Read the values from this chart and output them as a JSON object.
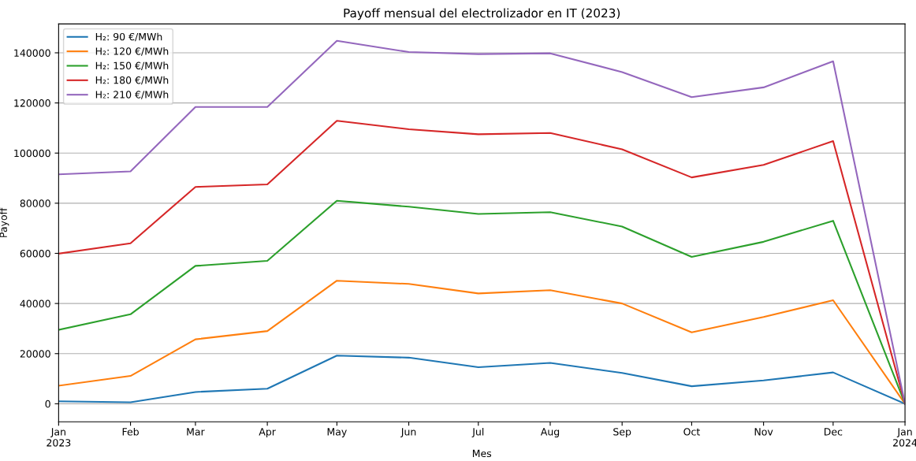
{
  "chart_data": {
    "type": "line",
    "title": "Payoff mensual del electrolizador en IT (2023)",
    "xlabel": "Mes",
    "ylabel": "Payoff",
    "x": [
      "2023-01",
      "2023-02",
      "2023-03",
      "2023-04",
      "2023-05",
      "2023-06",
      "2023-07",
      "2023-08",
      "2023-09",
      "2023-10",
      "2023-11",
      "2023-12",
      "2024-01"
    ],
    "series": [
      {
        "name": "H₂: 90 €/MWh",
        "color": "#1f77b4",
        "values": [
          1000,
          600,
          4700,
          6000,
          19200,
          18400,
          14600,
          16300,
          12300,
          7000,
          9300,
          12500,
          0
        ]
      },
      {
        "name": "H₂: 120 €/MWh",
        "color": "#ff7f0e",
        "values": [
          7200,
          11100,
          25700,
          29000,
          49100,
          47800,
          44000,
          45300,
          40000,
          28500,
          34600,
          41300,
          0
        ]
      },
      {
        "name": "H₂: 150 €/MWh",
        "color": "#2ca02c",
        "values": [
          29500,
          35700,
          55000,
          57000,
          81000,
          78600,
          75700,
          76400,
          70700,
          58600,
          64600,
          73000,
          0
        ]
      },
      {
        "name": "H₂: 180 €/MWh",
        "color": "#d62728",
        "values": [
          59900,
          64000,
          86500,
          87500,
          112900,
          109500,
          107500,
          108000,
          101500,
          90300,
          95300,
          104800,
          0
        ]
      },
      {
        "name": "H₂: 210 €/MWh",
        "color": "#9467bd",
        "values": [
          91500,
          92700,
          118400,
          118400,
          144800,
          140300,
          139500,
          139800,
          132300,
          122300,
          126200,
          136600,
          0
        ]
      }
    ],
    "xlim": [
      "2023-01",
      "2024-01"
    ],
    "xticks": [
      {
        "value": "2023-01",
        "label": "Jan\n2023"
      },
      {
        "value": "2023-02",
        "label": "Feb"
      },
      {
        "value": "2023-03",
        "label": "Mar"
      },
      {
        "value": "2023-04",
        "label": "Apr"
      },
      {
        "value": "2023-05",
        "label": "May"
      },
      {
        "value": "2023-06",
        "label": "Jun"
      },
      {
        "value": "2023-07",
        "label": "Jul"
      },
      {
        "value": "2023-08",
        "label": "Aug"
      },
      {
        "value": "2023-09",
        "label": "Sep"
      },
      {
        "value": "2023-10",
        "label": "Oct"
      },
      {
        "value": "2023-11",
        "label": "Nov"
      },
      {
        "value": "2023-12",
        "label": "Dec"
      },
      {
        "value": "2024-01",
        "label": "Jan\n2024"
      }
    ],
    "ylim": [
      -7200,
      151500
    ],
    "yticks": [
      0,
      20000,
      40000,
      60000,
      80000,
      100000,
      120000,
      140000
    ],
    "grid": "y",
    "legend": "top left",
    "marker": "none",
    "line_style": "solid"
  }
}
